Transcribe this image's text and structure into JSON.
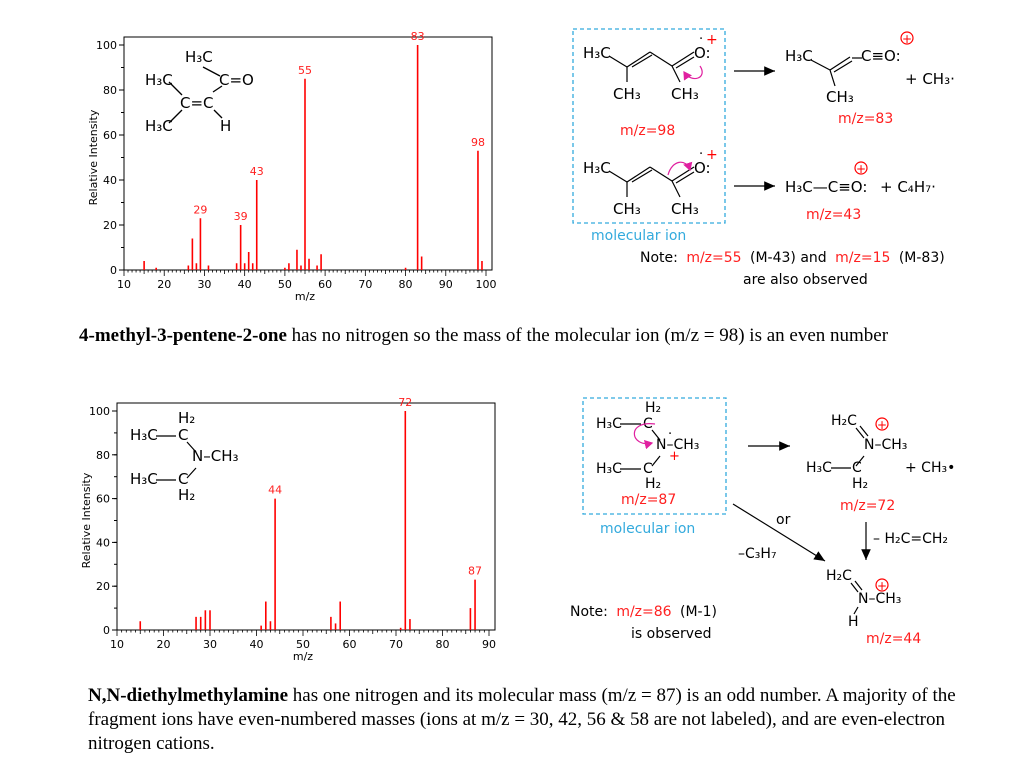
{
  "colors": {
    "peak": "#ff0000",
    "label_red": "#ff2020",
    "box": "#33aadd",
    "arrow_pink": "#e020a0"
  },
  "chart_data": [
    {
      "type": "bar",
      "title": "",
      "xlabel": "m/z",
      "ylabel": "Relative Intensity",
      "xlim": [
        10,
        100
      ],
      "ylim": [
        0,
        100
      ],
      "xticks": [
        10,
        20,
        30,
        40,
        50,
        60,
        70,
        80,
        90,
        100
      ],
      "yticks": [
        0,
        20,
        40,
        60,
        80,
        100
      ],
      "grid": false,
      "peaks": [
        {
          "mz": 15,
          "i": 4
        },
        {
          "mz": 18,
          "i": 1
        },
        {
          "mz": 26,
          "i": 2
        },
        {
          "mz": 27,
          "i": 14
        },
        {
          "mz": 28,
          "i": 3
        },
        {
          "mz": 29,
          "i": 23
        },
        {
          "mz": 31,
          "i": 2
        },
        {
          "mz": 38,
          "i": 3
        },
        {
          "mz": 39,
          "i": 20
        },
        {
          "mz": 40,
          "i": 3
        },
        {
          "mz": 41,
          "i": 8
        },
        {
          "mz": 42,
          "i": 3
        },
        {
          "mz": 43,
          "i": 40
        },
        {
          "mz": 50,
          "i": 1
        },
        {
          "mz": 51,
          "i": 3
        },
        {
          "mz": 53,
          "i": 9
        },
        {
          "mz": 54,
          "i": 2
        },
        {
          "mz": 55,
          "i": 85
        },
        {
          "mz": 56,
          "i": 5
        },
        {
          "mz": 58,
          "i": 2
        },
        {
          "mz": 59,
          "i": 7
        },
        {
          "mz": 80,
          "i": 1
        },
        {
          "mz": 83,
          "i": 100
        },
        {
          "mz": 84,
          "i": 6
        },
        {
          "mz": 98,
          "i": 53
        },
        {
          "mz": 99,
          "i": 4
        }
      ],
      "labels": [
        {
          "mz": 29,
          "i": 23,
          "text": "29"
        },
        {
          "mz": 39,
          "i": 20,
          "text": "39"
        },
        {
          "mz": 43,
          "i": 40,
          "text": "43"
        },
        {
          "mz": 55,
          "i": 85,
          "text": "55"
        },
        {
          "mz": 83,
          "i": 100,
          "text": "83"
        },
        {
          "mz": 98,
          "i": 53,
          "text": "98"
        }
      ]
    },
    {
      "type": "bar",
      "title": "",
      "xlabel": "m/z",
      "ylabel": "Relative Intensity",
      "xlim": [
        10,
        90
      ],
      "ylim": [
        0,
        100
      ],
      "xticks": [
        10,
        20,
        30,
        40,
        50,
        60,
        70,
        80,
        90
      ],
      "yticks": [
        0,
        20,
        40,
        60,
        80,
        100
      ],
      "grid": false,
      "peaks": [
        {
          "mz": 15,
          "i": 4
        },
        {
          "mz": 27,
          "i": 6
        },
        {
          "mz": 28,
          "i": 6
        },
        {
          "mz": 29,
          "i": 9
        },
        {
          "mz": 30,
          "i": 9
        },
        {
          "mz": 41,
          "i": 2
        },
        {
          "mz": 42,
          "i": 13
        },
        {
          "mz": 43,
          "i": 4
        },
        {
          "mz": 44,
          "i": 60
        },
        {
          "mz": 56,
          "i": 6
        },
        {
          "mz": 57,
          "i": 3
        },
        {
          "mz": 58,
          "i": 13
        },
        {
          "mz": 71,
          "i": 1
        },
        {
          "mz": 72,
          "i": 100
        },
        {
          "mz": 73,
          "i": 5
        },
        {
          "mz": 86,
          "i": 10
        },
        {
          "mz": 87,
          "i": 23
        }
      ],
      "labels": [
        {
          "mz": 44,
          "i": 60,
          "text": "44"
        },
        {
          "mz": 72,
          "i": 100,
          "text": "72"
        },
        {
          "mz": 87,
          "i": 23,
          "text": "87"
        }
      ]
    }
  ],
  "molecule1": {
    "top_group": "H₃C",
    "carbonyl": "C=O",
    "left_upper": "H₃C",
    "left_lower": "H₃C",
    "alkene": "C=C",
    "h": "H"
  },
  "molecule2": {
    "h2_top": "H₂",
    "h3c_upper": "H₃C",
    "n_ch3": "N–CH₃",
    "h3c_lower": "H₃C",
    "h2_bottom": "H₂"
  },
  "scheme1": {
    "mol_h3c": "H₃C",
    "mol_ch3_a": "CH₃",
    "mol_ch3_b": "CH₃",
    "mol_o": "O:",
    "mz98": "m/z=98",
    "box_label": "molecular ion",
    "prod1_h3c": "H₃C",
    "prod1_co": "C≡O:",
    "prod1_ch3": "CH₃",
    "prod1_plus": "+ CH₃·",
    "mz83": "m/z=83",
    "prod2": "H₃C—C≡O:",
    "prod2_plus": "+ C₄H₇·",
    "mz43": "m/z=43",
    "note_prefix": "Note:",
    "note_mz55": "m/z=55",
    "note_m43": "(M-43) and",
    "note_mz15": "m/z=15",
    "note_m83": "(M-83)",
    "note_line2": "are also observed"
  },
  "scheme2": {
    "h2_top": "H₂",
    "h3c_upper": "H₃C",
    "n_ch3": "N–CH₃",
    "h3c_lower": "H₃C",
    "h2_bottom": "H₂",
    "mz87": "m/z=87",
    "box_label": "molecular ion",
    "p1_h2c": "H₂C",
    "p1_n": "N–CH₃",
    "p1_h3c": "H₃C",
    "p1_h2": "H₂",
    "p1_plus": "+ CH₃•",
    "mz72": "m/z=72",
    "loss_ethylene": "– H₂C=CH₂",
    "or_label": "or",
    "loss_c3h7": "–C₃H₇",
    "p2_h2c": "H₂C",
    "p2_n": "N–CH₃",
    "p2_h": "H",
    "mz44": "m/z=44",
    "note_prefix": "Note:",
    "note_mz86": "m/z=86",
    "note_m1": "(M-1)",
    "note_line2": "is observed"
  },
  "caption1": {
    "bold": "4-methyl-3-pentene-2-one",
    "text": " has no nitrogen so the mass of the molecular ion (m/z = 98) is an even number"
  },
  "caption2": {
    "bold": "N,N-diethylmethylamine",
    "text": " has one nitrogen and its molecular mass (m/z = 87) is an odd number. A majority of the fragment ions have even-numbered masses (ions at m/z = 30, 42, 56 & 58 are not labeled), and are even-electron nitrogen cations."
  }
}
